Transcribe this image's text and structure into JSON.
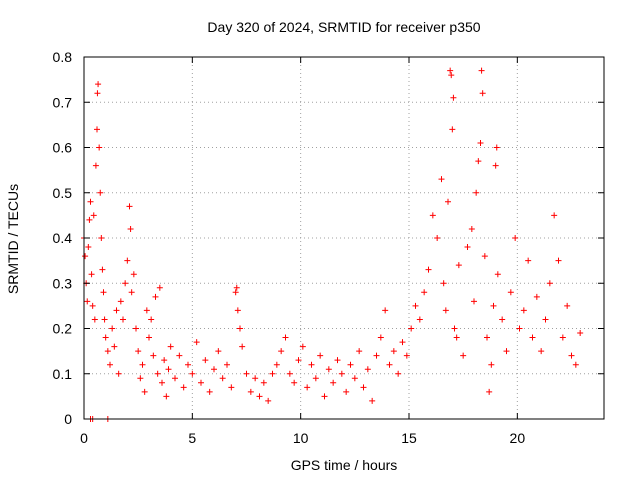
{
  "chart_data": {
    "type": "scatter",
    "title": "Day 320 of 2024, SRMTID for receiver p350",
    "xlabel": "GPS time / hours",
    "ylabel": "SRMTID / TECUs",
    "xlim": [
      0,
      24
    ],
    "ylim": [
      0,
      0.8
    ],
    "grid": true,
    "marker": "plus",
    "color": "#ff0000",
    "xticks": [
      0,
      5,
      10,
      15,
      20
    ],
    "xtick_labels": [
      "0",
      "5",
      "10",
      "15",
      "20"
    ],
    "yticks": [
      0,
      0.1,
      0.2,
      0.3,
      0.4,
      0.5,
      0.6,
      0.7,
      0.8
    ],
    "ytick_labels": [
      "0",
      "0.1",
      "0.2",
      "0.3",
      "0.4",
      "0.5",
      "0.6",
      "0.7",
      "0.8"
    ],
    "series": [
      {
        "name": "SRMTID",
        "points": [
          [
            0.0,
            0.4
          ],
          [
            0.05,
            0.36
          ],
          [
            0.1,
            0.3
          ],
          [
            0.15,
            0.26
          ],
          [
            0.2,
            0.38
          ],
          [
            0.25,
            0.44
          ],
          [
            0.3,
            0.48
          ],
          [
            0.35,
            0.32
          ],
          [
            0.4,
            0.25
          ],
          [
            0.45,
            0.45
          ],
          [
            0.5,
            0.22
          ],
          [
            0.55,
            0.56
          ],
          [
            0.6,
            0.64
          ],
          [
            0.62,
            0.72
          ],
          [
            0.65,
            0.74
          ],
          [
            0.7,
            0.6
          ],
          [
            0.75,
            0.5
          ],
          [
            0.8,
            0.4
          ],
          [
            0.85,
            0.33
          ],
          [
            0.9,
            0.28
          ],
          [
            0.95,
            0.22
          ],
          [
            1.0,
            0.18
          ],
          [
            1.1,
            0.15
          ],
          [
            1.2,
            0.12
          ],
          [
            1.3,
            0.2
          ],
          [
            1.4,
            0.16
          ],
          [
            1.5,
            0.24
          ],
          [
            1.6,
            0.1
          ],
          [
            1.7,
            0.26
          ],
          [
            1.8,
            0.22
          ],
          [
            1.9,
            0.3
          ],
          [
            2.0,
            0.35
          ],
          [
            2.1,
            0.47
          ],
          [
            2.15,
            0.42
          ],
          [
            2.2,
            0.28
          ],
          [
            2.3,
            0.32
          ],
          [
            2.4,
            0.2
          ],
          [
            2.5,
            0.15
          ],
          [
            2.6,
            0.09
          ],
          [
            2.7,
            0.12
          ],
          [
            2.8,
            0.06
          ],
          [
            2.9,
            0.24
          ],
          [
            3.0,
            0.18
          ],
          [
            3.1,
            0.22
          ],
          [
            3.2,
            0.14
          ],
          [
            3.3,
            0.27
          ],
          [
            3.4,
            0.1
          ],
          [
            3.5,
            0.29
          ],
          [
            3.6,
            0.08
          ],
          [
            3.7,
            0.13
          ],
          [
            3.8,
            0.05
          ],
          [
            3.9,
            0.11
          ],
          [
            4.0,
            0.16
          ],
          [
            4.2,
            0.09
          ],
          [
            4.4,
            0.14
          ],
          [
            4.6,
            0.07
          ],
          [
            4.8,
            0.12
          ],
          [
            5.0,
            0.1
          ],
          [
            5.2,
            0.17
          ],
          [
            5.4,
            0.08
          ],
          [
            5.6,
            0.13
          ],
          [
            5.8,
            0.06
          ],
          [
            6.0,
            0.11
          ],
          [
            6.2,
            0.15
          ],
          [
            6.4,
            0.09
          ],
          [
            6.6,
            0.12
          ],
          [
            6.8,
            0.07
          ],
          [
            7.0,
            0.28
          ],
          [
            7.05,
            0.29
          ],
          [
            7.1,
            0.24
          ],
          [
            7.2,
            0.2
          ],
          [
            7.3,
            0.16
          ],
          [
            7.5,
            0.1
          ],
          [
            7.7,
            0.06
          ],
          [
            7.9,
            0.09
          ],
          [
            8.1,
            0.05
          ],
          [
            8.3,
            0.08
          ],
          [
            8.5,
            0.04
          ],
          [
            8.7,
            0.1
          ],
          [
            8.9,
            0.12
          ],
          [
            9.1,
            0.15
          ],
          [
            9.3,
            0.18
          ],
          [
            9.5,
            0.1
          ],
          [
            9.7,
            0.08
          ],
          [
            9.9,
            0.13
          ],
          [
            10.1,
            0.16
          ],
          [
            10.3,
            0.07
          ],
          [
            10.5,
            0.12
          ],
          [
            10.7,
            0.09
          ],
          [
            10.9,
            0.14
          ],
          [
            11.1,
            0.05
          ],
          [
            11.3,
            0.11
          ],
          [
            11.5,
            0.08
          ],
          [
            11.7,
            0.13
          ],
          [
            11.9,
            0.1
          ],
          [
            12.1,
            0.06
          ],
          [
            12.3,
            0.12
          ],
          [
            12.5,
            0.09
          ],
          [
            12.7,
            0.15
          ],
          [
            12.9,
            0.07
          ],
          [
            13.1,
            0.11
          ],
          [
            13.3,
            0.04
          ],
          [
            13.5,
            0.14
          ],
          [
            13.7,
            0.18
          ],
          [
            13.9,
            0.24
          ],
          [
            14.1,
            0.12
          ],
          [
            14.3,
            0.15
          ],
          [
            14.5,
            0.1
          ],
          [
            14.7,
            0.17
          ],
          [
            14.9,
            0.14
          ],
          [
            15.1,
            0.2
          ],
          [
            15.3,
            0.25
          ],
          [
            15.5,
            0.22
          ],
          [
            15.7,
            0.28
          ],
          [
            15.9,
            0.33
          ],
          [
            16.1,
            0.45
          ],
          [
            16.3,
            0.4
          ],
          [
            16.5,
            0.53
          ],
          [
            16.6,
            0.3
          ],
          [
            16.7,
            0.24
          ],
          [
            16.8,
            0.48
          ],
          [
            16.9,
            0.77
          ],
          [
            16.95,
            0.76
          ],
          [
            17.0,
            0.64
          ],
          [
            17.05,
            0.71
          ],
          [
            17.1,
            0.2
          ],
          [
            17.2,
            0.18
          ],
          [
            17.3,
            0.34
          ],
          [
            17.5,
            0.14
          ],
          [
            17.7,
            0.38
          ],
          [
            17.9,
            0.42
          ],
          [
            18.0,
            0.26
          ],
          [
            18.1,
            0.5
          ],
          [
            18.2,
            0.57
          ],
          [
            18.3,
            0.61
          ],
          [
            18.35,
            0.77
          ],
          [
            18.4,
            0.72
          ],
          [
            18.5,
            0.36
          ],
          [
            18.6,
            0.18
          ],
          [
            18.7,
            0.06
          ],
          [
            18.8,
            0.12
          ],
          [
            18.9,
            0.25
          ],
          [
            19.0,
            0.56
          ],
          [
            19.05,
            0.6
          ],
          [
            19.1,
            0.32
          ],
          [
            19.3,
            0.22
          ],
          [
            19.5,
            0.15
          ],
          [
            19.7,
            0.28
          ],
          [
            19.9,
            0.4
          ],
          [
            20.1,
            0.2
          ],
          [
            20.3,
            0.24
          ],
          [
            20.5,
            0.35
          ],
          [
            20.7,
            0.18
          ],
          [
            20.9,
            0.27
          ],
          [
            21.1,
            0.15
          ],
          [
            21.3,
            0.22
          ],
          [
            21.5,
            0.3
          ],
          [
            21.7,
            0.45
          ],
          [
            21.9,
            0.35
          ],
          [
            22.1,
            0.18
          ],
          [
            22.3,
            0.25
          ],
          [
            22.5,
            0.14
          ],
          [
            22.7,
            0.12
          ],
          [
            22.9,
            0.19
          ],
          [
            0.3,
            0.0
          ],
          [
            0.4,
            0.0
          ],
          [
            1.1,
            0.0
          ]
        ]
      }
    ]
  }
}
